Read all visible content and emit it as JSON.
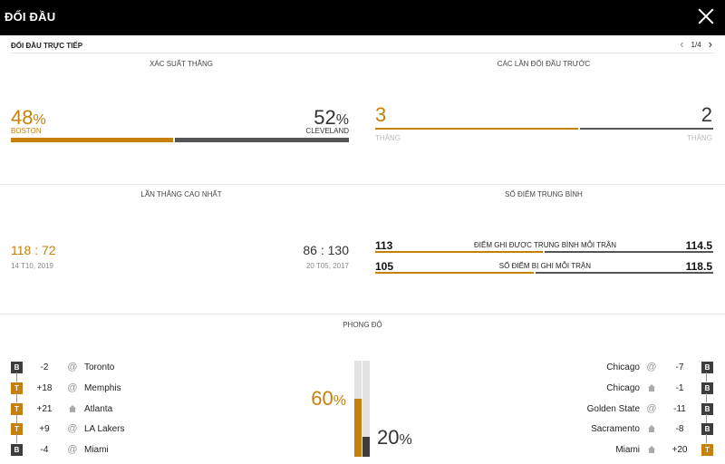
{
  "header": {
    "title": "ĐỐI ĐẦU"
  },
  "subheader": {
    "title": "ĐỐI ĐẦU TRỰC TIẾP",
    "pager": "1/4"
  },
  "win_probability": {
    "title": "XÁC SUẤT THẮNG",
    "home": {
      "value": "48",
      "unit": "%",
      "team": "BOSTON",
      "share": 0.48
    },
    "away": {
      "value": "52",
      "unit": "%",
      "team": "CLEVELAND",
      "share": 0.52
    }
  },
  "previous_meetings": {
    "title": "CÁC LẦN ĐỐI ĐẦU TRƯỚC",
    "home": {
      "value": "3",
      "label": "THẮNG",
      "share": 0.6
    },
    "away": {
      "value": "2",
      "label": "THẮNG",
      "share": 0.4
    }
  },
  "biggest_win": {
    "title": "LẦN THẮNG CAO NHẤT",
    "home": {
      "score_a": "118",
      "sep": ":",
      "score_b": "72",
      "date": "14 T10, 2019"
    },
    "away": {
      "score_a": "86",
      "sep": ":",
      "score_b": "130",
      "date": "20 T05, 2017"
    }
  },
  "average_points": {
    "title": "SỐ ĐIỂM TRUNG BÌNH",
    "rows": [
      {
        "label": "ĐIỂM GHI ĐƯỢC TRUNG BÌNH MỖI TRẬN",
        "home": "113",
        "away": "114.5",
        "home_share": 0.496
      },
      {
        "label": "SỐ ĐIỂM BỊ GHI MỖI TRẬN",
        "home": "105",
        "away": "118.5",
        "home_share": 0.47
      }
    ]
  },
  "form": {
    "title": "PHONG ĐỘ",
    "home": {
      "pct_value": "60",
      "pct_unit": "%",
      "fill": 0.6,
      "games": [
        {
          "result": "B",
          "diff": "-2",
          "venue": "@",
          "opponent": "Toronto"
        },
        {
          "result": "T",
          "diff": "+18",
          "venue": "@",
          "opponent": "Memphis"
        },
        {
          "result": "T",
          "diff": "+21",
          "venue": "home",
          "opponent": "Atlanta"
        },
        {
          "result": "T",
          "diff": "+9",
          "venue": "@",
          "opponent": "LA Lakers"
        },
        {
          "result": "B",
          "diff": "-4",
          "venue": "@",
          "opponent": "Miami"
        }
      ]
    },
    "away": {
      "pct_value": "20",
      "pct_unit": "%",
      "fill": 0.2,
      "games": [
        {
          "result": "B",
          "diff": "-7",
          "venue": "@",
          "opponent": "Chicago"
        },
        {
          "result": "B",
          "diff": "-1",
          "venue": "home",
          "opponent": "Chicago"
        },
        {
          "result": "B",
          "diff": "-11",
          "venue": "@",
          "opponent": "Golden State"
        },
        {
          "result": "B",
          "diff": "-8",
          "venue": "home",
          "opponent": "Sacramento"
        },
        {
          "result": "T",
          "diff": "+20",
          "venue": "home",
          "opponent": "Miami"
        }
      ]
    }
  },
  "colors": {
    "home": "#c7800a",
    "away": "#3d3d3d",
    "track": "#e2e2e2"
  },
  "icons": {
    "close": "close-icon",
    "prev": "chevron-left-icon",
    "next": "chevron-right-icon",
    "home_venue": "home-icon",
    "away_venue": "at-icon"
  }
}
